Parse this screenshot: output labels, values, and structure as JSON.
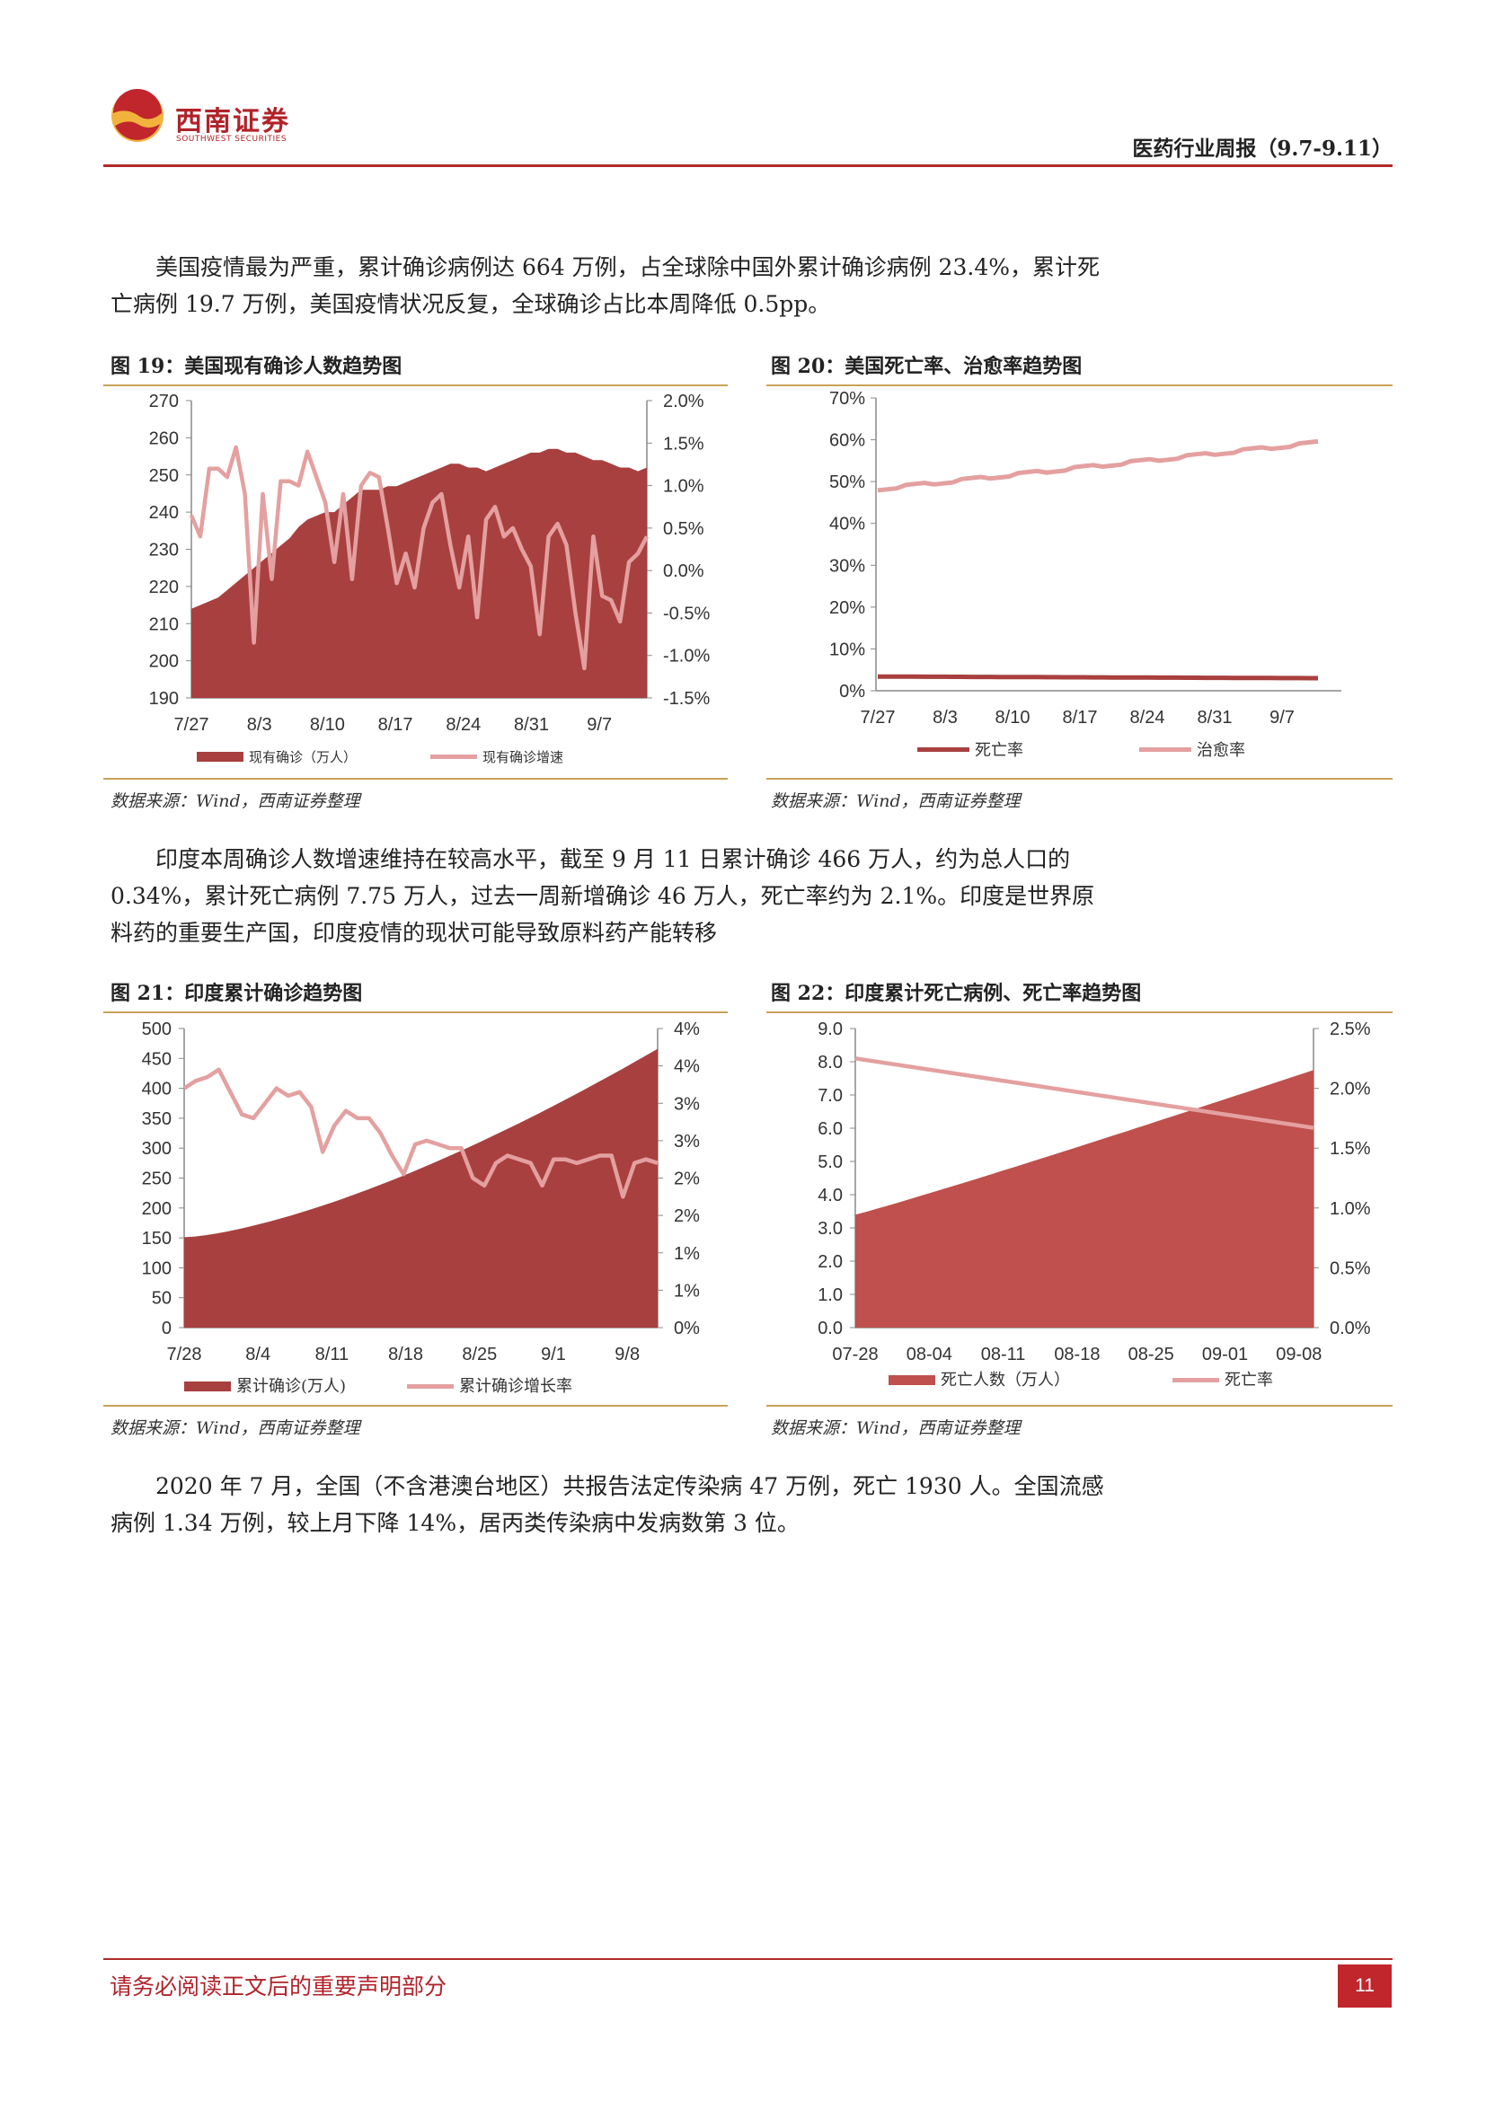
{
  "header": {
    "logo_cn": "西南证券",
    "logo_en": "SOUTHWEST SECURITIES",
    "title": "医药行业周报（9.7-9.11）"
  },
  "paragraphs": {
    "p1": "美国疫情最为严重，累计确诊病例达 664 万例，占全球除中国外累计确诊病例 23.4%，累计死亡病例 19.7 万例，美国疫情状况反复，全球确诊占比本周降低 0.5pp。",
    "p2": "印度本周确诊人数增速维持在较高水平，截至 9 月 11 日累计确诊 466 万人，约为总人口的 0.34%，累计死亡病例 7.75 万人，过去一周新增确诊 46 万人，死亡率约为 2.1%。印度是世界原料药的重要生产国，印度疫情的现状可能导致原料药产能转移",
    "p3": "2020 年 7 月，全国（不含港澳台地区）共报告法定传染病 47 万例，死亡 1930 人。全国流感病例 1.34 万例，较上月下降 14%，居丙类传染病中发病数第 3 位。"
  },
  "figures": {
    "fig19": {
      "title": "图 19：美国现有确诊人数趋势图",
      "source": "数据来源：Wind，西南证券整理"
    },
    "fig20": {
      "title": "图 20：美国死亡率、治愈率趋势图",
      "source": "数据来源：Wind，西南证券整理"
    },
    "fig21": {
      "title": "图 21：印度累计确诊趋势图",
      "source": "数据来源：Wind，西南证券整理"
    },
    "fig22": {
      "title": "图 22：印度累计死亡病例、死亡率趋势图",
      "source": "数据来源：Wind，西南证券整理"
    }
  },
  "colors": {
    "brand_red": "#b0232a",
    "area_dark": "#a8403f",
    "area_red": "#c0504d",
    "line_pink": "#e4a0a0",
    "rule_gold": "#c8a25a"
  },
  "footer": {
    "disclaimer": "请务必阅读正文后的重要声明部分",
    "page": "11"
  },
  "chart_data": [
    {
      "id": "fig19",
      "type": "area",
      "x_ticks": [
        "7/27",
        "8/3",
        "8/10",
        "8/17",
        "8/24",
        "8/31",
        "9/7"
      ],
      "y_left": {
        "range": [
          190,
          270
        ],
        "ticks": [
          "270",
          "260",
          "250",
          "240",
          "230",
          "220",
          "210",
          "200",
          "190"
        ]
      },
      "y_right": {
        "range": [
          -1.5,
          2.0
        ],
        "ticks": [
          "2.0%",
          "1.5%",
          "1.0%",
          "0.5%",
          "0.0%",
          "-0.5%",
          "-1.0%",
          "-1.5%"
        ]
      },
      "series": [
        {
          "name": "现有确诊（万人）",
          "axis": "left",
          "kind": "area",
          "values": [
            214,
            215,
            216,
            217,
            219,
            221,
            223,
            225,
            227,
            229,
            231,
            233,
            236,
            238,
            239,
            240,
            240,
            242,
            244,
            246,
            246,
            246,
            247,
            247,
            248,
            249,
            250,
            251,
            252,
            253,
            253,
            252,
            252,
            251,
            252,
            253,
            254,
            255,
            256,
            256,
            257,
            257,
            256,
            256,
            255,
            254,
            254,
            253,
            252,
            252,
            251,
            252
          ]
        },
        {
          "name": "现有确诊增速",
          "axis": "right",
          "kind": "line",
          "values": [
            0.65,
            0.4,
            1.2,
            1.2,
            1.1,
            1.45,
            0.9,
            -0.85,
            0.9,
            -0.1,
            1.05,
            1.05,
            1.0,
            1.4,
            1.1,
            0.8,
            0.1,
            0.9,
            -0.1,
            1.0,
            1.15,
            1.1,
            0.5,
            -0.15,
            0.2,
            -0.2,
            0.5,
            0.8,
            0.9,
            0.3,
            -0.2,
            0.4,
            -0.55,
            0.6,
            0.75,
            0.4,
            0.5,
            0.25,
            0.05,
            -0.75,
            0.4,
            0.55,
            0.3,
            -0.5,
            -1.15,
            0.4,
            -0.3,
            -0.35,
            -0.6,
            0.1,
            0.2,
            0.4
          ]
        }
      ]
    },
    {
      "id": "fig20",
      "type": "line",
      "x_ticks": [
        "7/27",
        "8/3",
        "8/10",
        "8/17",
        "8/24",
        "8/31",
        "9/7"
      ],
      "y": {
        "range": [
          0,
          70
        ],
        "ticks": [
          "70%",
          "60%",
          "50%",
          "40%",
          "30%",
          "20%",
          "10%",
          "0%"
        ]
      },
      "series": [
        {
          "name": "死亡率",
          "start": 3.4,
          "end": 3.0
        },
        {
          "name": "治愈率",
          "start": 48.2,
          "end": 59.3
        }
      ]
    },
    {
      "id": "fig21",
      "type": "area",
      "x_ticks": [
        "7/28",
        "8/4",
        "8/11",
        "8/18",
        "8/25",
        "9/1",
        "9/8"
      ],
      "y_left": {
        "range": [
          0,
          500
        ],
        "ticks": [
          "500",
          "450",
          "400",
          "350",
          "300",
          "250",
          "200",
          "150",
          "100",
          "50",
          "0"
        ]
      },
      "y_right": {
        "range": [
          0,
          4
        ],
        "ticks": [
          "4%",
          "4%",
          "3%",
          "3%",
          "2%",
          "2%",
          "1%",
          "1%",
          "0%"
        ]
      },
      "series": [
        {
          "name": "累计确诊(万人)",
          "axis": "left",
          "kind": "area",
          "start": 151,
          "end": 466
        },
        {
          "name": "累计确诊增长率",
          "axis": "right",
          "kind": "line",
          "values": [
            3.2,
            3.3,
            3.35,
            3.45,
            3.15,
            2.85,
            2.8,
            3.0,
            3.2,
            3.1,
            3.15,
            2.95,
            2.35,
            2.7,
            2.9,
            2.8,
            2.8,
            2.6,
            2.3,
            2.05,
            2.45,
            2.5,
            2.45,
            2.4,
            2.4,
            2.0,
            1.9,
            2.2,
            2.3,
            2.25,
            2.2,
            1.9,
            2.25,
            2.25,
            2.2,
            2.25,
            2.3,
            2.3,
            1.75,
            2.2,
            2.25,
            2.2
          ]
        }
      ]
    },
    {
      "id": "fig22",
      "type": "area",
      "x_ticks": [
        "07-28",
        "08-04",
        "08-11",
        "08-18",
        "08-25",
        "09-01",
        "09-08"
      ],
      "y_left": {
        "range": [
          0,
          9
        ],
        "ticks": [
          "9.0",
          "8.0",
          "7.0",
          "6.0",
          "5.0",
          "4.0",
          "3.0",
          "2.0",
          "1.0",
          "0.0"
        ]
      },
      "y_right": {
        "range": [
          0,
          2.5
        ],
        "ticks": [
          "2.5%",
          "2.0%",
          "1.5%",
          "1.0%",
          "0.5%",
          "0.0%"
        ]
      },
      "series": [
        {
          "name": "死亡人数（万人）",
          "axis": "left",
          "kind": "area",
          "start": 3.4,
          "end": 7.75
        },
        {
          "name": "死亡率",
          "axis": "right",
          "kind": "line",
          "start": 2.25,
          "end": 1.67
        }
      ]
    }
  ]
}
